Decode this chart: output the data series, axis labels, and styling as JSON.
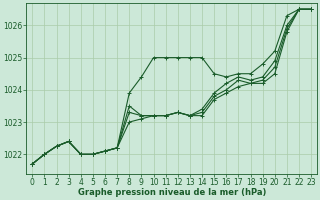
{
  "title": "Graphe pression niveau de la mer (hPa)",
  "background_color": "#cce8d8",
  "line_color": "#1a5c2a",
  "grid_color": "#aaccaa",
  "xlim": [
    -0.5,
    23.5
  ],
  "ylim": [
    1021.4,
    1026.7
  ],
  "yticks": [
    1022,
    1023,
    1024,
    1025,
    1026
  ],
  "xticks": [
    0,
    1,
    2,
    3,
    4,
    5,
    6,
    7,
    8,
    9,
    10,
    11,
    12,
    13,
    14,
    15,
    16,
    17,
    18,
    19,
    20,
    21,
    22,
    23
  ],
  "series": [
    [
      1021.7,
      1022.0,
      1022.25,
      1022.4,
      1022.0,
      1022.0,
      1022.1,
      1022.2,
      1023.9,
      1024.4,
      1025.0,
      1025.0,
      1025.0,
      1025.0,
      1025.0,
      1024.5,
      1024.4,
      1024.5,
      1024.5,
      1024.8,
      1025.2,
      1026.3,
      1026.5,
      1026.5
    ],
    [
      1021.7,
      1022.0,
      1022.25,
      1022.4,
      1022.0,
      1022.0,
      1022.1,
      1022.2,
      1023.0,
      1023.1,
      1023.2,
      1023.2,
      1023.3,
      1023.2,
      1023.2,
      1023.7,
      1023.9,
      1024.1,
      1024.2,
      1024.2,
      1024.5,
      1025.8,
      1026.5,
      1026.5
    ],
    [
      1021.7,
      1022.0,
      1022.25,
      1022.4,
      1022.0,
      1022.0,
      1022.1,
      1022.2,
      1023.3,
      1023.2,
      1023.2,
      1023.2,
      1023.3,
      1023.2,
      1023.4,
      1023.9,
      1024.2,
      1024.4,
      1024.3,
      1024.4,
      1024.9,
      1026.0,
      1026.5,
      1026.5
    ],
    [
      1021.7,
      1022.0,
      1022.25,
      1022.4,
      1022.0,
      1022.0,
      1022.1,
      1022.2,
      1023.5,
      1023.2,
      1023.2,
      1023.2,
      1023.3,
      1023.2,
      1023.3,
      1023.8,
      1024.0,
      1024.3,
      1024.2,
      1024.3,
      1024.7,
      1025.9,
      1026.5,
      1026.5
    ]
  ],
  "marker": "+",
  "markersize": 3,
  "linewidth": 0.8,
  "tick_fontsize": 5.5,
  "label_fontsize": 6.0
}
